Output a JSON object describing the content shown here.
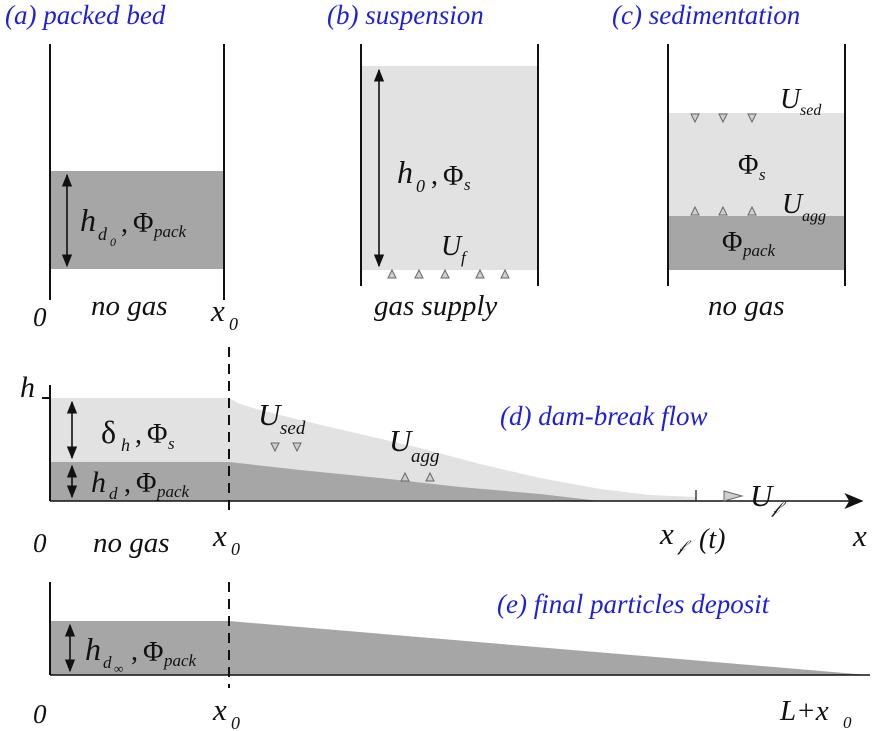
{
  "panels": {
    "a": {
      "title": "(a)  packed bed",
      "label": "no gas",
      "origin": "0",
      "x0": "x",
      "x0_sub": "0",
      "h": "h",
      "h_sub1": "d",
      "h_sub2": "0",
      "phi": "Φ",
      "phi_sub": "pack",
      "comma": ","
    },
    "b": {
      "title": "(b)  suspension",
      "label": "gas supply",
      "h": "h",
      "h_sub": "0",
      "phi": "Φ",
      "phi_sub": "s",
      "comma": ",",
      "uf": "U",
      "uf_sub": "f"
    },
    "c": {
      "title": "(c)  sedimentation",
      "label": "no gas",
      "used": "U",
      "used_sub": "sed",
      "phi_s": "Φ",
      "phi_s_sub": "s",
      "uagg": "U",
      "uagg_sub": "agg",
      "phi_pack": "Φ",
      "phi_pack_sub": "pack"
    },
    "d": {
      "title": "(d)  dam-break flow",
      "h_axis": "h",
      "origin": "0",
      "no_gas": "no gas",
      "x0": "x",
      "x0_sub": "0",
      "x_axis": "x",
      "delta": "δ",
      "delta_sub": "h",
      "phi_s": "Φ",
      "phi_s_sub": "s",
      "hd": "h",
      "hd_sub": "d",
      "phi_pack": "Φ",
      "phi_pack_sub": "pack",
      "used": "U",
      "used_sub": "sed",
      "uagg": "U",
      "uagg_sub": "agg",
      "uf": "U",
      "uf_sub": "𝒻",
      "xf": "x",
      "xf_sub": "𝒻",
      "xf_t": "(t)",
      "comma": ","
    },
    "e": {
      "title": "(e)  final particles deposit",
      "origin": "0",
      "x0": "x",
      "x0_sub": "0",
      "end": "L+x",
      "end_sub": "0",
      "h": "h",
      "h_sub1": "d",
      "h_sub2": "∞",
      "phi": "Φ",
      "phi_sub": "pack",
      "comma": ","
    }
  },
  "colors": {
    "title": "#1f1fd6",
    "dark": "#a6a6a6",
    "light": "#e2e2e2",
    "line": "#111111"
  }
}
